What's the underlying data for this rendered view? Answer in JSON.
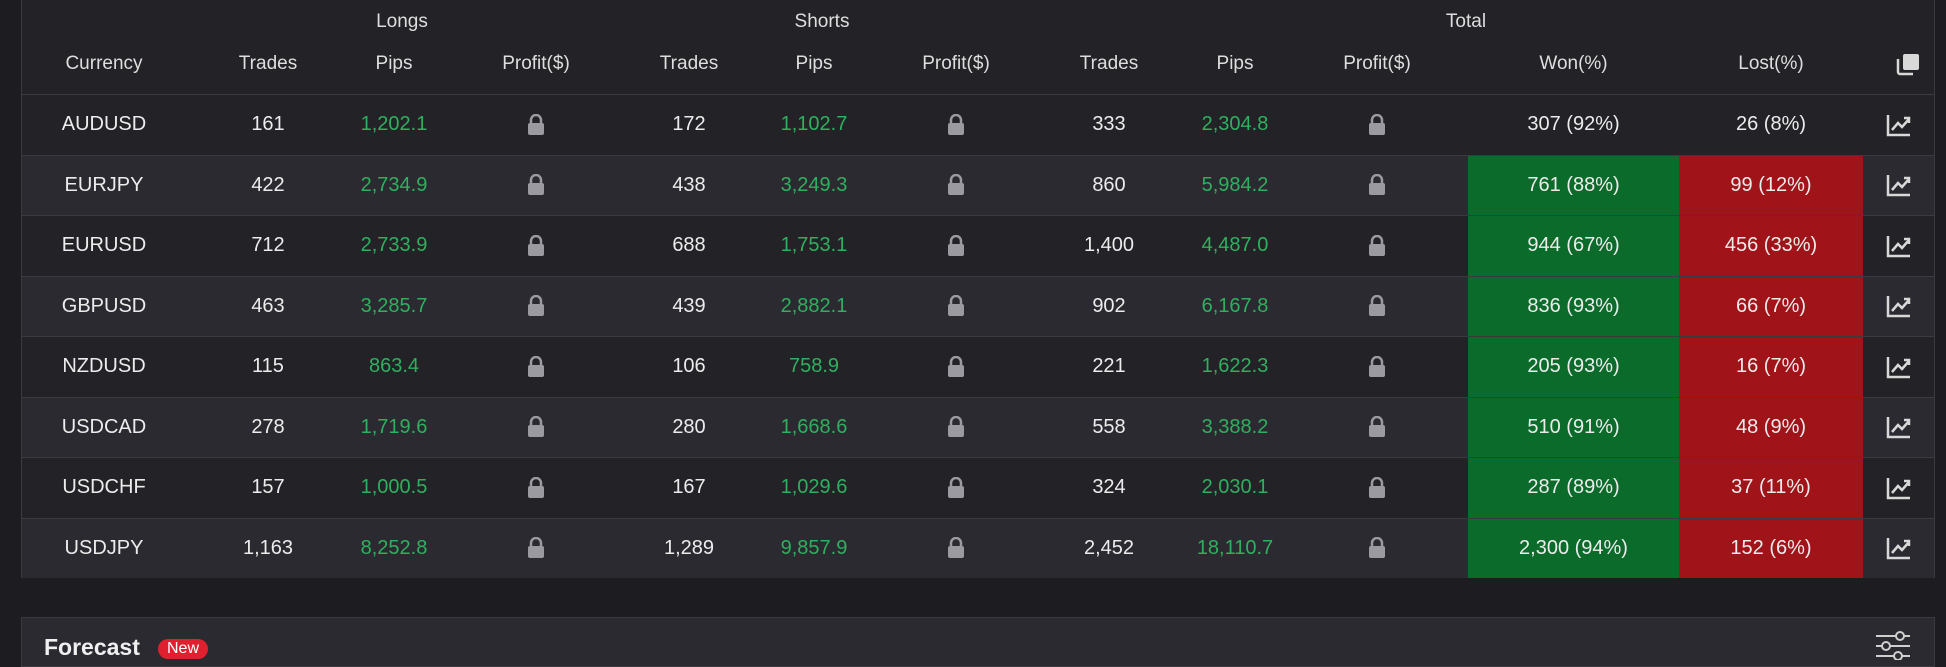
{
  "groups": {
    "longs": "Longs",
    "shorts": "Shorts",
    "total": "Total"
  },
  "headers": {
    "currency": "Currency",
    "trades": "Trades",
    "pips": "Pips",
    "profit": "Profit($)",
    "won": "Won(%)",
    "lost": "Lost(%)"
  },
  "rows": [
    {
      "currency": "AUDUSD",
      "l_trades": "161",
      "l_pips": "1,202.1",
      "s_trades": "172",
      "s_pips": "1,102.7",
      "t_trades": "333",
      "t_pips": "2,304.8",
      "won": "307 (92%)",
      "lost": "26 (8%)",
      "highlight": false
    },
    {
      "currency": "EURJPY",
      "l_trades": "422",
      "l_pips": "2,734.9",
      "s_trades": "438",
      "s_pips": "3,249.3",
      "t_trades": "860",
      "t_pips": "5,984.2",
      "won": "761 (88%)",
      "lost": "99 (12%)",
      "highlight": true
    },
    {
      "currency": "EURUSD",
      "l_trades": "712",
      "l_pips": "2,733.9",
      "s_trades": "688",
      "s_pips": "1,753.1",
      "t_trades": "1,400",
      "t_pips": "4,487.0",
      "won": "944 (67%)",
      "lost": "456 (33%)",
      "highlight": true
    },
    {
      "currency": "GBPUSD",
      "l_trades": "463",
      "l_pips": "3,285.7",
      "s_trades": "439",
      "s_pips": "2,882.1",
      "t_trades": "902",
      "t_pips": "6,167.8",
      "won": "836 (93%)",
      "lost": "66 (7%)",
      "highlight": true
    },
    {
      "currency": "NZDUSD",
      "l_trades": "115",
      "l_pips": "863.4",
      "s_trades": "106",
      "s_pips": "758.9",
      "t_trades": "221",
      "t_pips": "1,622.3",
      "won": "205 (93%)",
      "lost": "16 (7%)",
      "highlight": true
    },
    {
      "currency": "USDCAD",
      "l_trades": "278",
      "l_pips": "1,719.6",
      "s_trades": "280",
      "s_pips": "1,668.6",
      "t_trades": "558",
      "t_pips": "3,388.2",
      "won": "510 (91%)",
      "lost": "48 (9%)",
      "highlight": true
    },
    {
      "currency": "USDCHF",
      "l_trades": "157",
      "l_pips": "1,000.5",
      "s_trades": "167",
      "s_pips": "1,029.6",
      "t_trades": "324",
      "t_pips": "2,030.1",
      "won": "287 (89%)",
      "lost": "37 (11%)",
      "highlight": true
    },
    {
      "currency": "USDJPY",
      "l_trades": "1,163",
      "l_pips": "8,252.8",
      "s_trades": "1,289",
      "s_pips": "9,857.9",
      "t_trades": "2,452",
      "t_pips": "18,110.7",
      "won": "2,300 (94%)",
      "lost": "152 (6%)",
      "highlight": true
    }
  ],
  "icons": {
    "lock": "lock-icon",
    "chart": "chart-line-icon",
    "copy": "copy-icon",
    "settings": "sliders-icon"
  },
  "colors": {
    "pips": "#2fb05f",
    "won_bg": "#0b6b2a",
    "lost_bg": "#a01318",
    "badge": "#e0202e"
  },
  "forecast": {
    "title": "Forecast",
    "badge": "New"
  }
}
